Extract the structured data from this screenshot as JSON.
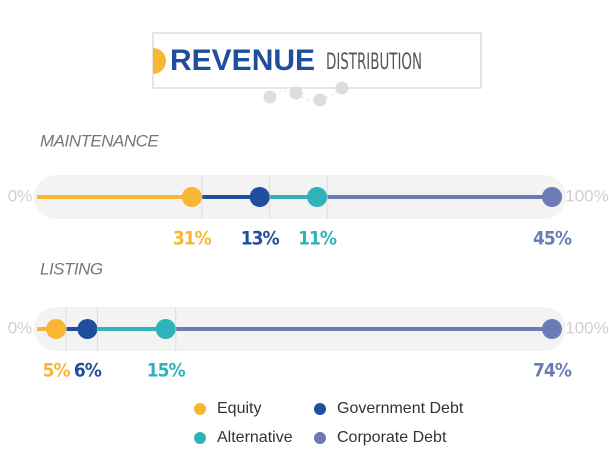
{
  "chart_data": {
    "type": "bar",
    "stacked": true,
    "orientation": "horizontal",
    "title": "REVENUE",
    "subtitle": "DISTRIBUTION",
    "categories": [
      "MAINTENANCE",
      "LISTING"
    ],
    "xlim": [
      0,
      100
    ],
    "xticks": [
      {
        "value": 0,
        "label": "0%"
      },
      {
        "value": 100,
        "label": "100%"
      }
    ],
    "series": [
      {
        "name": "Equity",
        "color": "#f7b733",
        "values": [
          31,
          5
        ],
        "value_labels": [
          "31%",
          "5%"
        ]
      },
      {
        "name": "Government Debt",
        "color": "#1f4e9c",
        "values": [
          13,
          6
        ],
        "value_labels": [
          "13%",
          "6%"
        ]
      },
      {
        "name": "Alternative",
        "color": "#2eb3b8",
        "values": [
          11,
          15
        ],
        "value_labels": [
          "11%",
          "15%"
        ]
      },
      {
        "name": "Corporate Debt",
        "color": "#6b7bb5",
        "values": [
          45,
          74
        ],
        "value_labels": [
          "45%",
          "74%"
        ]
      }
    ]
  }
}
